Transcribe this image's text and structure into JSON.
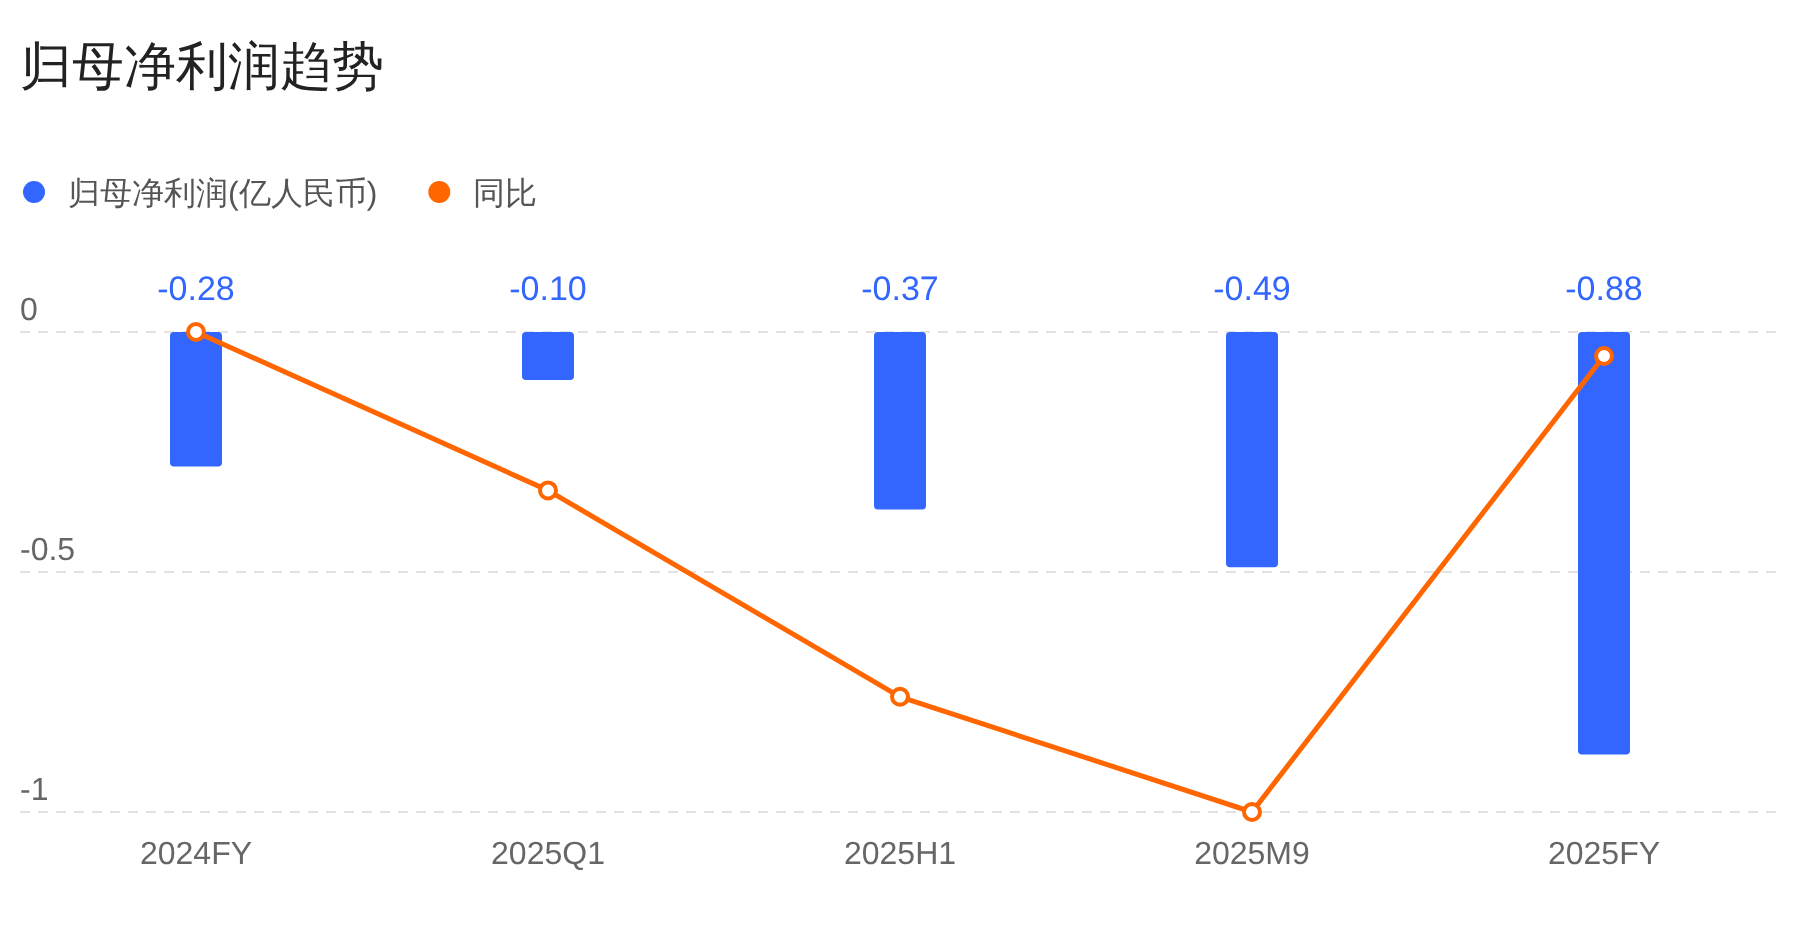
{
  "chart_data": {
    "type": "bar",
    "title": "归母净利润趋势",
    "categories": [
      "2024FY",
      "2025Q1",
      "2025H1",
      "2025M9",
      "2025FY"
    ],
    "series": [
      {
        "name": "归母净利润(亿人民币)",
        "color": "#3366ff",
        "values": [
          -0.28,
          -0.1,
          -0.37,
          -0.49,
          -0.88
        ],
        "value_labels": [
          "-0.28",
          "-0.10",
          "-0.37",
          "-0.49",
          "-0.88"
        ]
      },
      {
        "name": "同比",
        "type": "line",
        "color": "#ff6600",
        "values": [
          0,
          -0.33,
          -0.76,
          -1.0,
          -0.05
        ]
      }
    ],
    "ylim": [
      -1,
      0
    ],
    "yticks": [
      0,
      -0.5,
      -1
    ],
    "grid": "y",
    "legend": "top left",
    "marker": "circle"
  }
}
